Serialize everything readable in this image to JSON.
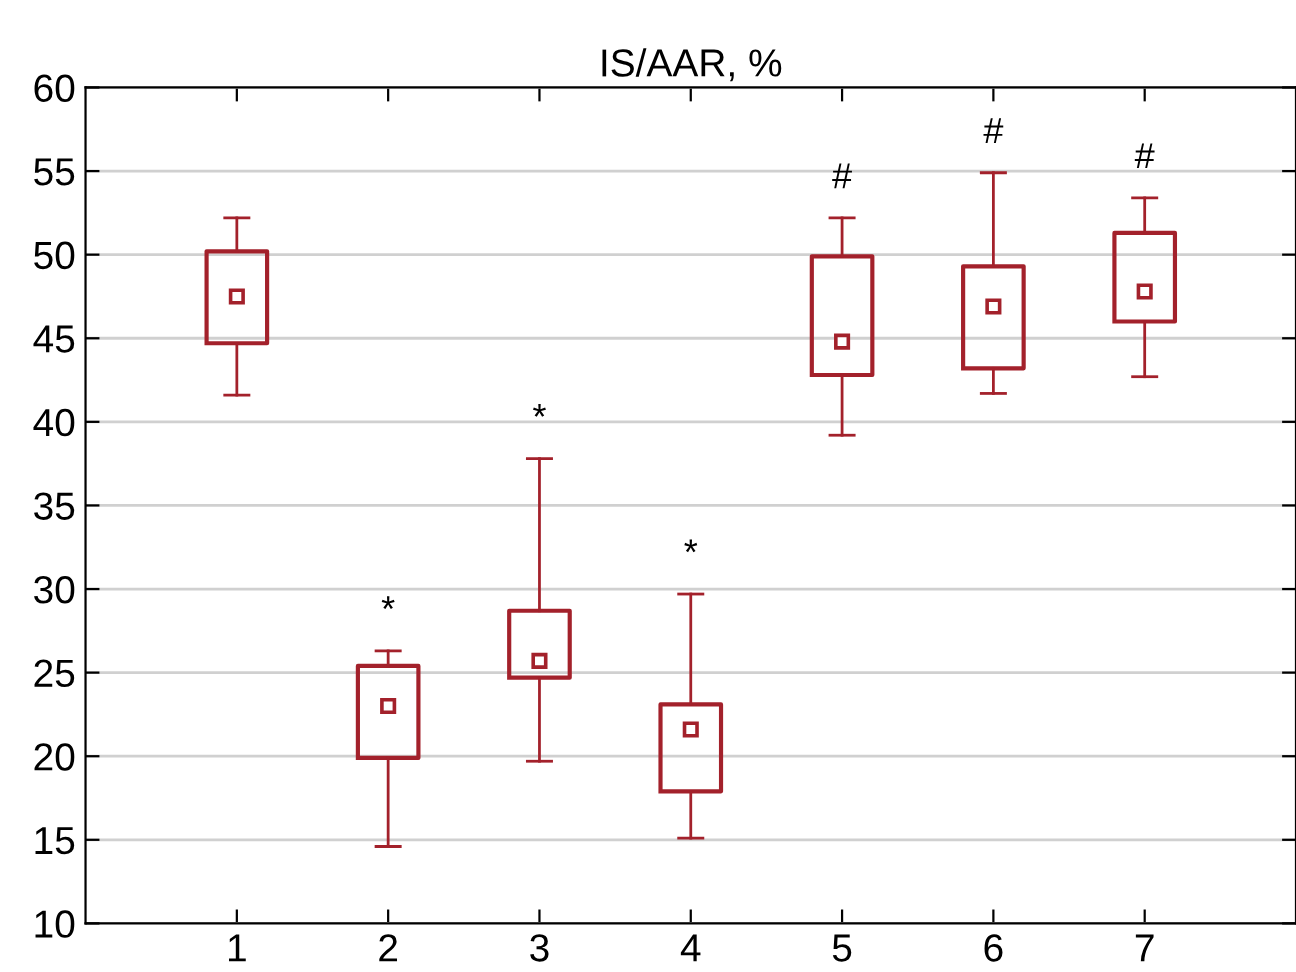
{
  "chart_data": {
    "type": "box",
    "title": "IS/AAR, %",
    "categories": [
      "1",
      "2",
      "3",
      "4",
      "5",
      "6",
      "7"
    ],
    "color": "#a3212b",
    "marker": "square",
    "boxes": [
      {
        "low": 41.6,
        "q1": 44.7,
        "median": 47.5,
        "q3": 50.2,
        "high": 52.2
      },
      {
        "low": 14.6,
        "q1": 19.9,
        "median": 23.0,
        "q3": 25.4,
        "high": 26.3
      },
      {
        "low": 19.7,
        "q1": 24.7,
        "median": 25.7,
        "q3": 28.7,
        "high": 37.8
      },
      {
        "low": 15.1,
        "q1": 17.9,
        "median": 21.6,
        "q3": 23.1,
        "high": 29.7
      },
      {
        "low": 39.2,
        "q1": 42.8,
        "median": 44.8,
        "q3": 49.9,
        "high": 52.2
      },
      {
        "low": 41.7,
        "q1": 43.2,
        "median": 46.9,
        "q3": 49.3,
        "high": 54.9
      },
      {
        "low": 42.7,
        "q1": 46.0,
        "median": 47.8,
        "q3": 51.3,
        "high": 53.4
      }
    ],
    "ylim": [
      10,
      60
    ],
    "yticks": [
      10,
      15,
      20,
      25,
      30,
      35,
      40,
      45,
      50,
      55,
      60
    ],
    "grid": "y",
    "annotations": [
      {
        "text": "*",
        "x": "2",
        "y": 26.3
      },
      {
        "text": "*",
        "x": "3",
        "y": 37.8
      },
      {
        "text": "*",
        "x": "4",
        "y": 29.7
      },
      {
        "text": "#",
        "x": "5",
        "y": 52.2
      },
      {
        "text": "#",
        "x": "6",
        "y": 54.9
      },
      {
        "text": "#",
        "x": "7",
        "y": 53.4
      }
    ]
  }
}
